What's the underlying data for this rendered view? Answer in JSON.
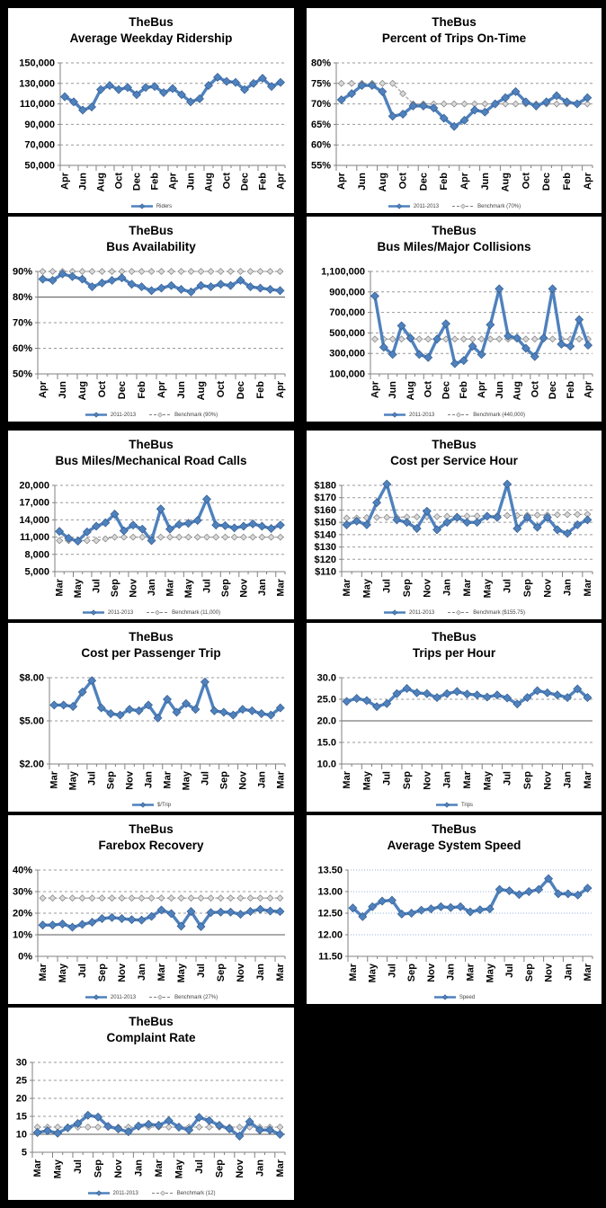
{
  "page": {
    "background": "#000000",
    "panel_background": "#FFFFFF",
    "report_subject": "TheBus"
  },
  "colors": {
    "series_line": "#4F81BD",
    "series_edge": "#2C5687",
    "benchmark_line": "#A6A6A6",
    "benchmark_fill": "#D9D9D9",
    "grid": "#999999",
    "grid_solid": "#595959",
    "grid_light_blue": "#95B3D7",
    "axis": "#808080",
    "title_text": "#000000"
  },
  "chart_data": [
    {
      "id": "ridership",
      "type": "line",
      "title1": "TheBus",
      "title2": "Average Weekday Ridership",
      "y": {
        "min": 50000,
        "max": 150000,
        "step": 20000,
        "format": "comma"
      },
      "x_labels": [
        "Apr",
        "Jun",
        "Aug",
        "Oct",
        "Dec",
        "Feb",
        "Apr",
        "Jun",
        "Aug",
        "Oct",
        "Dec",
        "Feb",
        "Apr"
      ],
      "series": {
        "name": "Riders",
        "values": [
          117000,
          112000,
          104000,
          107000,
          124000,
          128000,
          124000,
          126000,
          119000,
          126000,
          127000,
          121000,
          125000,
          119000,
          112000,
          115000,
          128000,
          136000,
          132000,
          131000,
          124000,
          130000,
          135000,
          127000,
          131000
        ]
      },
      "benchmark": null,
      "grid_style": "dash",
      "solid_gridlines": [],
      "legend": [
        {
          "type": "series",
          "label": "Riders"
        }
      ]
    },
    {
      "id": "on-time",
      "type": "line",
      "title1": "TheBus",
      "title2": "Percent of Trips On-Time",
      "y": {
        "min": 55,
        "max": 80,
        "step": 5,
        "format": "pct"
      },
      "x_labels": [
        "Apr",
        "Jun",
        "Aug",
        "Oct",
        "Dec",
        "Feb",
        "Apr",
        "Jun",
        "Aug",
        "Oct",
        "Dec",
        "Feb",
        "Apr"
      ],
      "series": {
        "name": "2011-2013",
        "values": [
          71,
          72.5,
          74.5,
          74.5,
          73,
          67,
          67.5,
          69.5,
          69.5,
          69,
          66.5,
          64.5,
          66,
          68.5,
          68,
          70,
          71.5,
          73,
          70.5,
          69.5,
          70.5,
          72,
          70.5,
          70,
          71.5
        ]
      },
      "benchmark": {
        "label": "Benchmark (70%)",
        "values": [
          75,
          75,
          75,
          75,
          75,
          75,
          72.5,
          70,
          70,
          70,
          70,
          70,
          70,
          70,
          70,
          70,
          70,
          70,
          70,
          70,
          70,
          70,
          70,
          70,
          70
        ]
      },
      "grid_style": "dash",
      "solid_gridlines": [],
      "legend": [
        {
          "type": "series",
          "label": "2011-2013"
        },
        {
          "type": "benchmark",
          "label": "Benchmark (70%)"
        }
      ]
    },
    {
      "id": "availability",
      "type": "line",
      "title1": "TheBus",
      "title2": "Bus Availability",
      "y": {
        "min": 50,
        "max": 90,
        "step": 10,
        "format": "pct"
      },
      "x_labels": [
        "Apr",
        "Jun",
        "Aug",
        "Oct",
        "Dec",
        "Feb",
        "Apr",
        "Jun",
        "Aug",
        "Oct",
        "Dec",
        "Feb",
        "Apr"
      ],
      "series": {
        "name": "2011-2013",
        "values": [
          87,
          86.5,
          89,
          88,
          87,
          84,
          85.5,
          86.5,
          87.5,
          85,
          84,
          82.5,
          83.5,
          84.5,
          83,
          82,
          84.5,
          84,
          85,
          84.5,
          86.5,
          84,
          83.5,
          83,
          82.5
        ]
      },
      "benchmark": {
        "label": "Benchmark (90%)",
        "value": 90
      },
      "grid_style": "dash",
      "solid_gridlines": [
        80
      ],
      "legend": [
        {
          "type": "series",
          "label": "2011-2013"
        },
        {
          "type": "benchmark",
          "label": "Benchmark (90%)"
        }
      ]
    },
    {
      "id": "collisions",
      "type": "line",
      "title1": "TheBus",
      "title2": "Bus Miles/Major Collisions",
      "y": {
        "min": 100000,
        "max": 1100000,
        "step": 200000,
        "format": "comma"
      },
      "x_labels": [
        "Apr",
        "Jun",
        "Aug",
        "Oct",
        "Dec",
        "Feb",
        "Apr",
        "Jun",
        "Aug",
        "Oct",
        "Dec",
        "Feb",
        "Apr"
      ],
      "series": {
        "name": "2011-2013",
        "values": [
          860000,
          360000,
          290000,
          570000,
          450000,
          290000,
          260000,
          440000,
          590000,
          200000,
          230000,
          370000,
          290000,
          580000,
          930000,
          470000,
          450000,
          350000,
          270000,
          450000,
          930000,
          390000,
          370000,
          630000,
          380000
        ]
      },
      "benchmark": {
        "label": "Benchmark (440,000)",
        "value": 440000
      },
      "grid_style": "dash",
      "solid_gridlines": [],
      "legend": [
        {
          "type": "series",
          "label": "2011-2013"
        },
        {
          "type": "benchmark",
          "label": "Benchmark (440,000)"
        }
      ]
    },
    {
      "id": "road-calls",
      "type": "line",
      "title1": "TheBus",
      "title2": "Bus Miles/Mechanical Road Calls",
      "y": {
        "min": 5000,
        "max": 20000,
        "step": 3000,
        "format": "comma"
      },
      "x_labels": [
        "Mar",
        "May",
        "Jul",
        "Sep",
        "Nov",
        "Jan",
        "Mar",
        "May",
        "Jul",
        "Sep",
        "Nov",
        "Jan",
        "Mar"
      ],
      "series": {
        "name": "2011-2013",
        "values": [
          12000,
          10800,
          10300,
          11900,
          12900,
          13500,
          15000,
          12100,
          13100,
          12400,
          10400,
          15900,
          12400,
          13200,
          13400,
          13900,
          17600,
          13100,
          13000,
          12600,
          12900,
          13300,
          12900,
          12500,
          13100
        ]
      },
      "benchmark": {
        "label": "Benchmark (11,000)",
        "values": [
          10400,
          10400,
          10400,
          10400,
          10400,
          10700,
          11000,
          11000,
          11000,
          11000,
          11000,
          11000,
          11000,
          11000,
          11000,
          11000,
          11000,
          11000,
          11000,
          11000,
          11000,
          11000,
          11000,
          11000,
          11000
        ]
      },
      "grid_style": "dash",
      "solid_gridlines": [],
      "legend": [
        {
          "type": "series",
          "label": "2011-2013"
        },
        {
          "type": "benchmark",
          "label": "Benchmark (11,000)"
        }
      ]
    },
    {
      "id": "cost-service-hour",
      "type": "line",
      "title1": "TheBus",
      "title2": "Cost per Service Hour",
      "y": {
        "min": 110,
        "max": 180,
        "step": 10,
        "format": "dollar0"
      },
      "x_labels": [
        "Mar",
        "May",
        "Jul",
        "Sep",
        "Nov",
        "Jan",
        "Mar",
        "May",
        "Jul",
        "Sep",
        "Nov",
        "Jan",
        "Mar"
      ],
      "series": {
        "name": "2011-2013",
        "values": [
          148,
          151,
          148,
          166,
          181,
          152,
          150,
          145,
          159,
          144,
          150,
          154,
          150,
          150,
          155,
          154,
          181,
          145,
          154,
          146,
          154,
          144,
          141,
          148,
          152
        ]
      },
      "benchmark": {
        "label": "Benchmark ($155.75)",
        "values": [
          153.5,
          153.6,
          153.8,
          153.9,
          154,
          154.1,
          154.3,
          154.4,
          154.5,
          154.6,
          154.8,
          154.9,
          155,
          155.1,
          155.3,
          155.4,
          155.5,
          155.6,
          155.8,
          155.9,
          156,
          156.1,
          156.3,
          156.4,
          156.5
        ]
      },
      "grid_style": "dash",
      "solid_gridlines": [],
      "legend": [
        {
          "type": "series",
          "label": "2011-2013"
        },
        {
          "type": "benchmark",
          "label": "Benchmark ($155.75)"
        }
      ]
    },
    {
      "id": "cost-passenger-trip",
      "type": "line",
      "title1": "TheBus",
      "title2": "Cost per Passenger Trip",
      "y": {
        "min": 2,
        "max": 8,
        "step": 3,
        "format": "dollar2"
      },
      "x_labels": [
        "Mar",
        "May",
        "Jul",
        "Sep",
        "Nov",
        "Jan",
        "Mar",
        "May",
        "Jul",
        "Sep",
        "Nov",
        "Jan",
        "Mar"
      ],
      "series": {
        "name": "$/Trip",
        "values": [
          6.1,
          6.1,
          6.0,
          7.0,
          7.8,
          5.9,
          5.5,
          5.4,
          5.8,
          5.7,
          6.1,
          5.2,
          6.5,
          5.6,
          6.2,
          5.8,
          7.7,
          5.7,
          5.6,
          5.4,
          5.8,
          5.7,
          5.5,
          5.4,
          5.9
        ]
      },
      "benchmark": null,
      "grid_style": "dash",
      "solid_gridlines": [],
      "legend": [
        {
          "type": "series",
          "label": "$/Trip"
        }
      ]
    },
    {
      "id": "trips-per-hour",
      "type": "line",
      "title1": "TheBus",
      "title2": "Trips per Hour",
      "y": {
        "min": 10,
        "max": 30,
        "step": 5,
        "format": "fixed1"
      },
      "x_labels": [
        "Mar",
        "May",
        "Jul",
        "Sep",
        "Nov",
        "Jan",
        "Mar",
        "May",
        "Jul",
        "Sep",
        "Nov",
        "Jan",
        "Mar"
      ],
      "series": {
        "name": "Trips",
        "values": [
          24.5,
          25.2,
          24.7,
          23.3,
          24.0,
          26.3,
          27.5,
          26.5,
          26.3,
          25.4,
          26.3,
          26.8,
          26.2,
          26.0,
          25.5,
          26.0,
          25.3,
          23.9,
          25.4,
          27.0,
          26.5,
          26.0,
          25.4,
          27.4,
          25.4
        ]
      },
      "benchmark": null,
      "grid_style": "dash",
      "solid_gridlines": [
        20
      ],
      "legend": [
        {
          "type": "series",
          "label": "Trips"
        }
      ]
    },
    {
      "id": "farebox-recovery",
      "type": "line",
      "title1": "TheBus",
      "title2": "Farebox Recovery",
      "y": {
        "min": 0,
        "max": 40,
        "step": 10,
        "format": "pct"
      },
      "x_labels": [
        "Mar",
        "May",
        "Jul",
        "Sep",
        "Nov",
        "Jan",
        "Mar",
        "May",
        "Jul",
        "Sep",
        "Nov",
        "Jan",
        "Mar"
      ],
      "series": {
        "name": "2011-2013",
        "values": [
          14.5,
          14.5,
          15.0,
          13.5,
          14.8,
          15.8,
          17.5,
          18.0,
          17.5,
          17.0,
          16.8,
          18.5,
          21.5,
          19.8,
          14.0,
          20.8,
          13.8,
          20.3,
          20.5,
          20.5,
          19.5,
          20.8,
          21.8,
          21.0,
          20.8
        ]
      },
      "benchmark": {
        "label": "Benchmark (27%)",
        "value": 27
      },
      "grid_style": "dash",
      "solid_gridlines": [
        10
      ],
      "legend": [
        {
          "type": "series",
          "label": "2011-2013"
        },
        {
          "type": "benchmark",
          "label": "Benchmark (27%)"
        }
      ]
    },
    {
      "id": "system-speed",
      "type": "line",
      "title1": "TheBus",
      "title2": "Average System Speed",
      "y": {
        "min": 11.5,
        "max": 13.5,
        "step": 0.5,
        "format": "fixed2"
      },
      "x_labels": [
        "Mar",
        "May",
        "Jul",
        "Sep",
        "Nov",
        "Jan",
        "Mar",
        "May",
        "Jul",
        "Sep",
        "Nov",
        "Jan",
        "Mar"
      ],
      "series": {
        "name": "Speed",
        "values": [
          12.62,
          12.42,
          12.65,
          12.78,
          12.8,
          12.48,
          12.5,
          12.57,
          12.6,
          12.65,
          12.63,
          12.65,
          12.53,
          12.58,
          12.6,
          13.05,
          13.02,
          12.93,
          13.0,
          13.05,
          13.3,
          12.95,
          12.95,
          12.92,
          13.08
        ]
      },
      "benchmark": null,
      "grid_style": "dot-light",
      "solid_gridlines": [],
      "legend": [
        {
          "type": "series",
          "label": "Speed"
        }
      ]
    },
    {
      "id": "complaint-rate",
      "type": "line",
      "title1": "TheBus",
      "title2": "Complaint Rate",
      "y": {
        "min": 5,
        "max": 30,
        "step": 5,
        "format": "int"
      },
      "x_labels": [
        "Mar",
        "May",
        "Jul",
        "Sep",
        "Nov",
        "Jan",
        "Mar",
        "May",
        "Jul",
        "Sep",
        "Nov",
        "Jan",
        "Mar"
      ],
      "series": {
        "name": "2011-2013",
        "values": [
          10.5,
          11.0,
          10.3,
          11.8,
          13.0,
          15.3,
          14.8,
          12.2,
          11.5,
          10.7,
          12.3,
          12.8,
          12.5,
          13.8,
          12.0,
          11.2,
          14.7,
          13.8,
          12.5,
          11.5,
          9.5,
          13.5,
          11.2,
          11.2,
          10.0
        ]
      },
      "benchmark": {
        "label": "Benchmark (12)",
        "value": 12
      },
      "grid_style": "dash",
      "solid_gridlines": [
        10
      ],
      "legend": [
        {
          "type": "series",
          "label": "2011-2013"
        },
        {
          "type": "benchmark",
          "label": "Benchmark (12)"
        }
      ]
    }
  ]
}
